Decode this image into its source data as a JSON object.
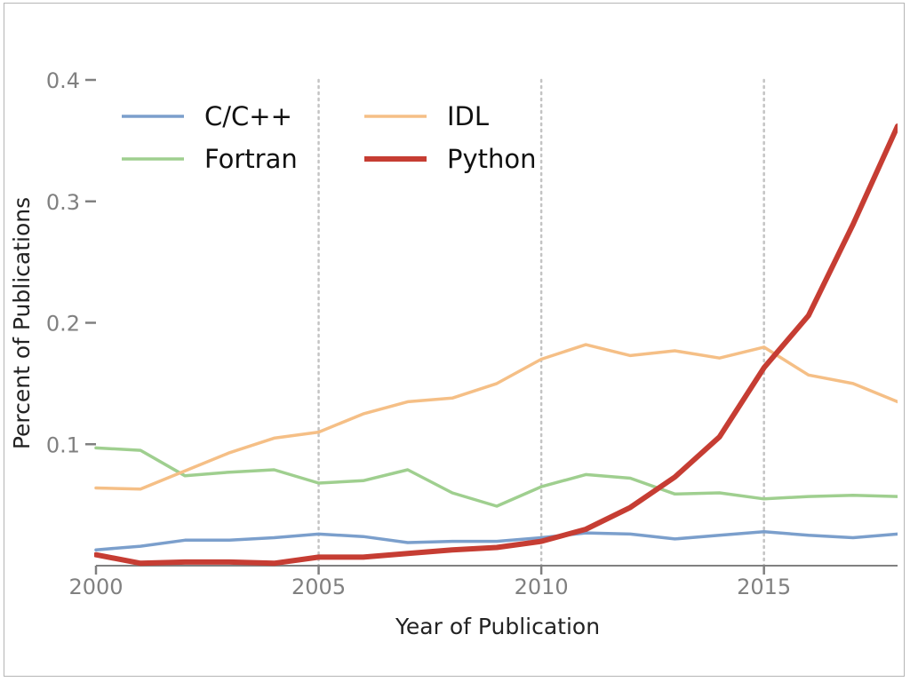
{
  "chart_data": {
    "type": "line",
    "title": "",
    "xlabel": "Year of Publication",
    "ylabel": "Percent of Publications",
    "xlim": [
      2000,
      2018
    ],
    "ylim": [
      0,
      0.4
    ],
    "x_ticks": [
      2000,
      2005,
      2010,
      2015
    ],
    "x_tick_labels": [
      "2000",
      "2005",
      "2010",
      "2015"
    ],
    "y_ticks": [
      0.1,
      0.2,
      0.3,
      0.4
    ],
    "y_tick_labels": [
      "0.1",
      "0.2",
      "0.3",
      "0.4"
    ],
    "grid": "vertical dotted lines at x ticks",
    "legend_position": "top-left",
    "x": [
      2000,
      2001,
      2002,
      2003,
      2004,
      2005,
      2006,
      2007,
      2008,
      2009,
      2010,
      2011,
      2012,
      2013,
      2014,
      2015,
      2016,
      2017,
      2018
    ],
    "series": [
      {
        "name": "C/C++",
        "color": "#7b9fcc",
        "values": [
          0.013,
          0.016,
          0.021,
          0.021,
          0.023,
          0.026,
          0.024,
          0.019,
          0.02,
          0.02,
          0.023,
          0.027,
          0.026,
          0.022,
          0.025,
          0.028,
          0.025,
          0.023,
          0.026
        ]
      },
      {
        "name": "Fortran",
        "color": "#9fcf8f",
        "values": [
          0.097,
          0.095,
          0.074,
          0.077,
          0.079,
          0.068,
          0.07,
          0.079,
          0.06,
          0.049,
          0.065,
          0.075,
          0.072,
          0.059,
          0.06,
          0.055,
          0.057,
          0.058,
          0.057
        ]
      },
      {
        "name": "IDL",
        "color": "#f5bf86",
        "values": [
          0.064,
          0.063,
          0.078,
          0.093,
          0.105,
          0.11,
          0.125,
          0.135,
          0.138,
          0.15,
          0.17,
          0.182,
          0.173,
          0.177,
          0.171,
          0.18,
          0.157,
          0.15,
          0.135
        ]
      },
      {
        "name": "Python",
        "color": "#c63d33",
        "values": [
          0.009,
          0.002,
          0.003,
          0.003,
          0.002,
          0.007,
          0.007,
          0.01,
          0.013,
          0.015,
          0.02,
          0.03,
          0.048,
          0.073,
          0.106,
          0.163,
          0.206,
          0.281,
          0.362
        ]
      }
    ]
  }
}
